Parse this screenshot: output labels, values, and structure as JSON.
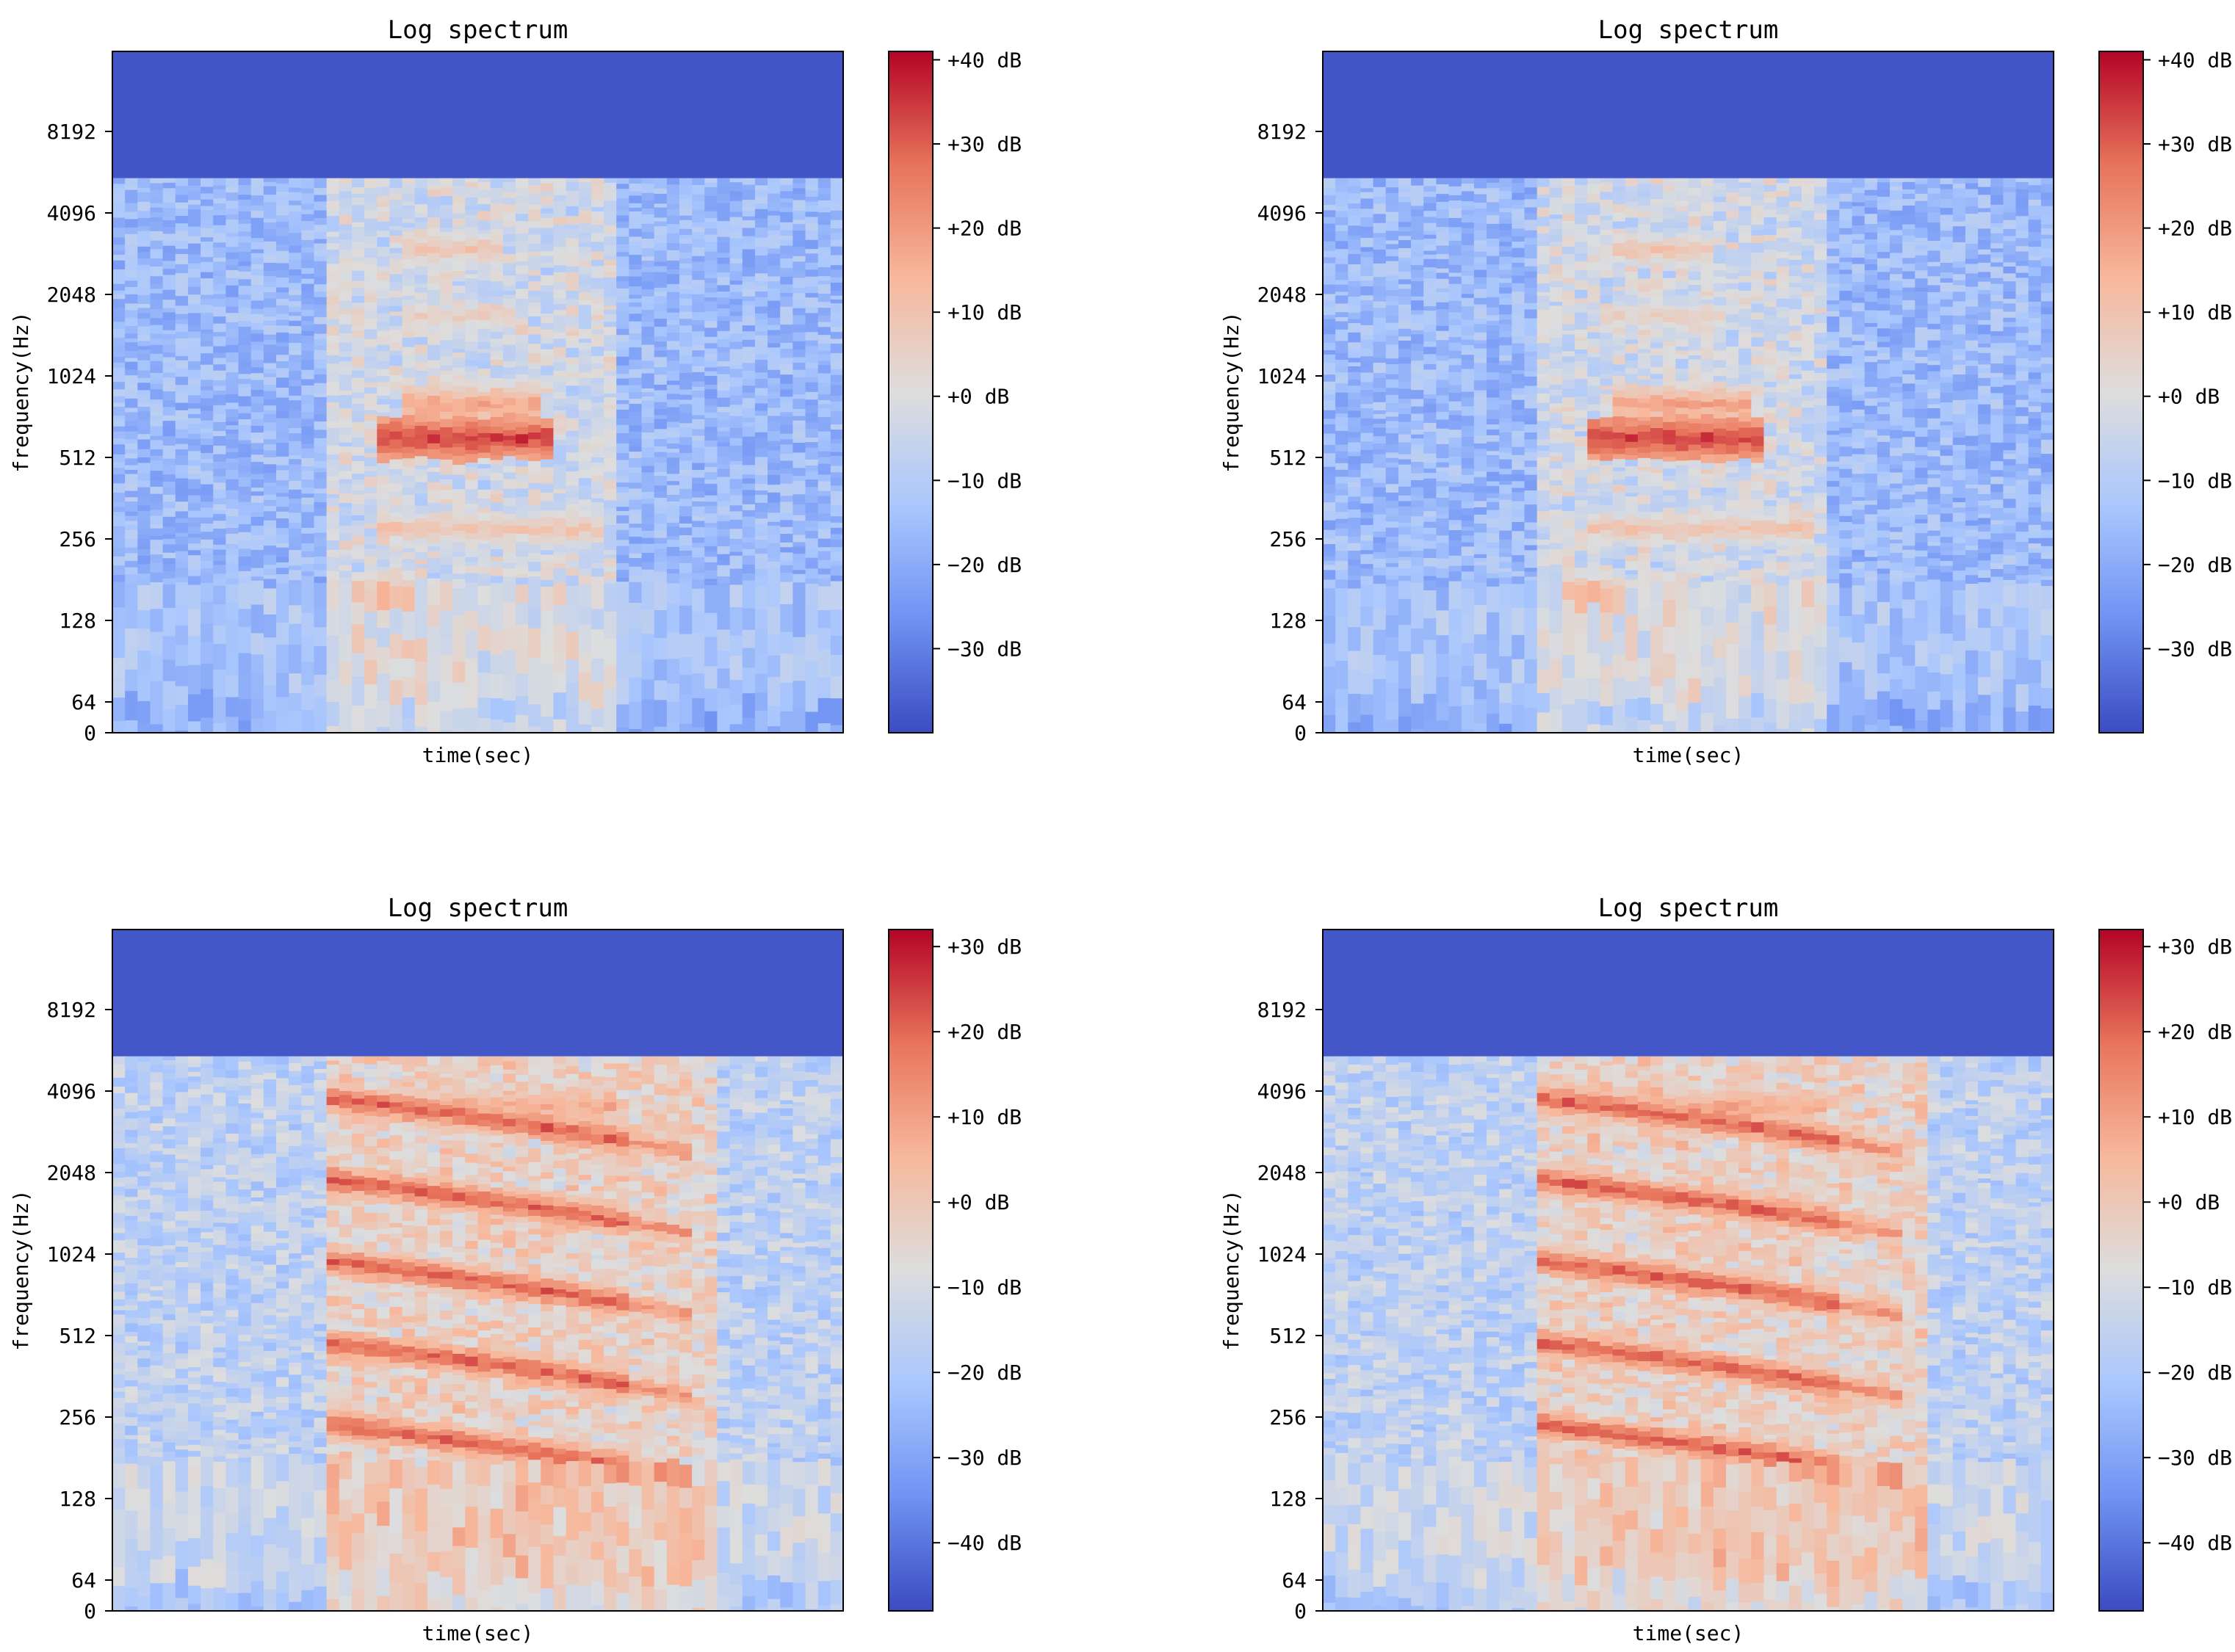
{
  "colormap": {
    "name": "coolwarm",
    "stops": [
      "#3b4cc0",
      "#6f92f3",
      "#aac7fd",
      "#dddddd",
      "#f7b89c",
      "#e7745b",
      "#b40426"
    ]
  },
  "chart_data": [
    {
      "type": "heatmap",
      "title": "Log spectrum",
      "xlabel": "time(sec)",
      "ylabel": "frequency(Hz)",
      "yscale": "log",
      "yticks": [
        "0",
        "64",
        "128",
        "256",
        "512",
        "1024",
        "2048",
        "4096",
        "8192"
      ],
      "color_range_db": [
        -40,
        41
      ],
      "colorbar_ticks": [
        "+40 dB",
        "+30 dB",
        "+20 dB",
        "+10 dB",
        "+0 dB",
        "−10 dB",
        "−20 dB",
        "−30 dB"
      ],
      "colorbar_values": [
        40,
        30,
        20,
        10,
        0,
        -10,
        -20,
        -30
      ],
      "voiced_segment": [
        0.3,
        0.69
      ],
      "formants": [
        {
          "freq_hz": 160,
          "level_db": 18,
          "t": [
            0.33,
            0.42
          ]
        },
        {
          "freq_hz": 280,
          "level_db": 14,
          "t": [
            0.36,
            0.68
          ]
        },
        {
          "freq_hz": 600,
          "level_db": 38,
          "t": [
            0.36,
            0.6
          ]
        },
        {
          "freq_hz": 800,
          "level_db": 22,
          "t": [
            0.4,
            0.58
          ]
        },
        {
          "freq_hz": 1700,
          "level_db": 10,
          "t": [
            0.4,
            0.55
          ]
        },
        {
          "freq_hz": 3000,
          "level_db": 14,
          "t": [
            0.4,
            0.53
          ]
        }
      ]
    },
    {
      "type": "heatmap",
      "title": "Log spectrum",
      "xlabel": "time(sec)",
      "ylabel": "frequency(Hz)",
      "yscale": "log",
      "yticks": [
        "0",
        "64",
        "128",
        "256",
        "512",
        "1024",
        "2048",
        "4096",
        "8192"
      ],
      "color_range_db": [
        -40,
        41
      ],
      "colorbar_ticks": [
        "+40 dB",
        "+30 dB",
        "+20 dB",
        "+10 dB",
        "+0 dB",
        "−10 dB",
        "−20 dB",
        "−30 dB"
      ],
      "colorbar_values": [
        40,
        30,
        20,
        10,
        0,
        -10,
        -20,
        -30
      ],
      "voiced_segment": [
        0.3,
        0.69
      ],
      "formants": [
        {
          "freq_hz": 160,
          "level_db": 18,
          "t": [
            0.33,
            0.42
          ]
        },
        {
          "freq_hz": 280,
          "level_db": 14,
          "t": [
            0.36,
            0.68
          ]
        },
        {
          "freq_hz": 600,
          "level_db": 38,
          "t": [
            0.36,
            0.6
          ]
        },
        {
          "freq_hz": 800,
          "level_db": 22,
          "t": [
            0.4,
            0.58
          ]
        },
        {
          "freq_hz": 1700,
          "level_db": 10,
          "t": [
            0.4,
            0.55
          ]
        },
        {
          "freq_hz": 3000,
          "level_db": 14,
          "t": [
            0.4,
            0.53
          ]
        }
      ]
    },
    {
      "type": "heatmap",
      "title": "Log spectrum",
      "xlabel": "time(sec)",
      "ylabel": "frequency(Hz)",
      "yscale": "log",
      "yticks": [
        "0",
        "64",
        "128",
        "256",
        "512",
        "1024",
        "2048",
        "4096",
        "8192"
      ],
      "color_range_db": [
        -48,
        32
      ],
      "colorbar_ticks": [
        "+30 dB",
        "+20 dB",
        "+10 dB",
        "+0 dB",
        "−10 dB",
        "−20 dB",
        "−30 dB",
        "−40 dB"
      ],
      "colorbar_values": [
        30,
        20,
        10,
        0,
        -10,
        -20,
        -30,
        -40
      ],
      "voiced_segment": [
        0.3,
        0.82
      ],
      "harmonics": {
        "f0_start_hz": 240,
        "f0_end_hz": 150,
        "t": [
          0.3,
          0.8
        ],
        "count": 5,
        "level_db": 25
      },
      "formants": [
        {
          "freq_hz": 3600,
          "level_db": 12,
          "t": [
            0.36,
            0.69
          ]
        }
      ]
    },
    {
      "type": "heatmap",
      "title": "Log spectrum",
      "xlabel": "time(sec)",
      "ylabel": "frequency(Hz)",
      "yscale": "log",
      "yticks": [
        "0",
        "64",
        "128",
        "256",
        "512",
        "1024",
        "2048",
        "4096",
        "8192"
      ],
      "color_range_db": [
        -48,
        32
      ],
      "colorbar_ticks": [
        "+30 dB",
        "+20 dB",
        "+10 dB",
        "+0 dB",
        "−10 dB",
        "−20 dB",
        "−30 dB",
        "−40 dB"
      ],
      "colorbar_values": [
        30,
        20,
        10,
        0,
        -10,
        -20,
        -30,
        -40
      ],
      "voiced_segment": [
        0.3,
        0.82
      ],
      "harmonics": {
        "f0_start_hz": 240,
        "f0_end_hz": 150,
        "t": [
          0.3,
          0.8
        ],
        "count": 5,
        "level_db": 25
      },
      "formants": [
        {
          "freq_hz": 3600,
          "level_db": 12,
          "t": [
            0.36,
            0.69
          ]
        }
      ]
    }
  ]
}
